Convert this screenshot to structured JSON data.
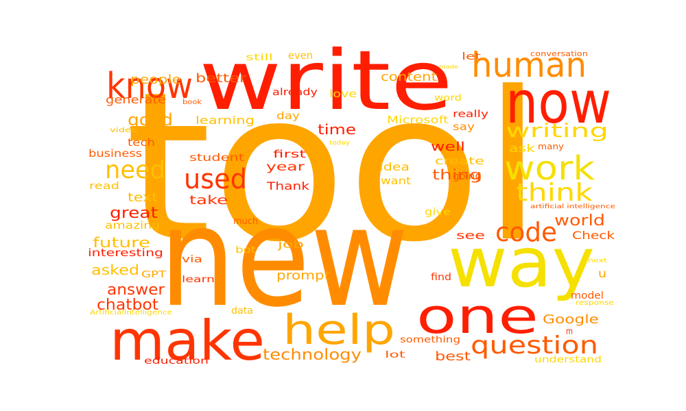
{
  "palette": {
    "gold": "#ffd700",
    "yellow": "#f5e000",
    "amber": "#ffbf00",
    "orange": "#ffa500",
    "dark-orange": "#ff8c00",
    "orange-red": "#ff5a00",
    "red-orange": "#ff3500",
    "red": "#ff1e00",
    "crimson": "#f00000"
  },
  "words": [
    {
      "text": "tool",
      "color": "orange"
    },
    {
      "text": "new",
      "color": "dark-orange"
    },
    {
      "text": "write",
      "color": "red"
    },
    {
      "text": "now",
      "color": "red"
    },
    {
      "text": "way",
      "color": "yellow"
    },
    {
      "text": "one",
      "color": "red"
    },
    {
      "text": "make",
      "color": "red-orange"
    },
    {
      "text": "help",
      "color": "orange"
    },
    {
      "text": "work",
      "color": "yellow"
    },
    {
      "text": "human",
      "color": "dark-orange"
    },
    {
      "text": "know",
      "color": "red-orange"
    },
    {
      "text": "used",
      "color": "red-orange"
    },
    {
      "text": "need",
      "color": "amber"
    },
    {
      "text": "think",
      "color": "gold"
    },
    {
      "text": "code",
      "color": "orange-red"
    },
    {
      "text": "writing",
      "color": "gold"
    },
    {
      "text": "question",
      "color": "orange-red"
    },
    {
      "text": "technology",
      "color": "dark-orange"
    },
    {
      "text": "good",
      "color": "orange"
    },
    {
      "text": "great",
      "color": "red"
    },
    {
      "text": "answer",
      "color": "red-orange"
    },
    {
      "text": "chatbot",
      "color": "red-orange"
    },
    {
      "text": "future",
      "color": "amber"
    },
    {
      "text": "asked",
      "color": "amber"
    },
    {
      "text": "world",
      "color": "orange-red"
    },
    {
      "text": "Google",
      "color": "dark-orange"
    },
    {
      "text": "time",
      "color": "red"
    },
    {
      "text": "thing",
      "color": "orange-red"
    },
    {
      "text": "people",
      "color": "orange"
    },
    {
      "text": "better",
      "color": "orange-red"
    },
    {
      "text": "content",
      "color": "orange"
    },
    {
      "text": "take",
      "color": "red-orange"
    },
    {
      "text": "text",
      "color": "amber"
    },
    {
      "text": "best",
      "color": "orange-red"
    },
    {
      "text": "prompt",
      "color": "orange"
    },
    {
      "text": "see",
      "color": "red-orange"
    },
    {
      "text": "well",
      "color": "red"
    },
    {
      "text": "year",
      "color": "red-orange"
    },
    {
      "text": "Thank",
      "color": "red"
    },
    {
      "text": "idea",
      "color": "amber"
    },
    {
      "text": "job",
      "color": "orange"
    },
    {
      "text": "student",
      "color": "orange-red"
    },
    {
      "text": "learning",
      "color": "amber"
    },
    {
      "text": "generate",
      "color": "orange-red"
    },
    {
      "text": "amazing",
      "color": "amber"
    },
    {
      "text": "interesting",
      "color": "red"
    },
    {
      "text": "Check",
      "color": "orange-red"
    },
    {
      "text": "create",
      "color": "amber"
    },
    {
      "text": "going",
      "color": "orange-red"
    },
    {
      "text": "ask",
      "color": "gold"
    },
    {
      "text": "day",
      "color": "orange"
    },
    {
      "text": "first",
      "color": "red"
    },
    {
      "text": "want",
      "color": "amber"
    },
    {
      "text": "say",
      "color": "dark-orange"
    },
    {
      "text": "really",
      "color": "red"
    },
    {
      "text": "Microsoft",
      "color": "gold"
    },
    {
      "text": "already",
      "color": "red"
    },
    {
      "text": "love",
      "color": "gold"
    },
    {
      "text": "even",
      "color": "amber"
    },
    {
      "text": "let",
      "color": "orange-red"
    },
    {
      "text": "still",
      "color": "gold"
    },
    {
      "text": "word",
      "color": "gold"
    },
    {
      "text": "tech",
      "color": "orange-red"
    },
    {
      "text": "business",
      "color": "orange-red"
    },
    {
      "text": "read",
      "color": "amber"
    },
    {
      "text": "much",
      "color": "orange-red"
    },
    {
      "text": "via",
      "color": "orange-red"
    },
    {
      "text": "learn",
      "color": "red-orange"
    },
    {
      "text": "bot",
      "color": "amber"
    },
    {
      "text": "GPT",
      "color": "orange"
    },
    {
      "text": "find",
      "color": "red-orange"
    },
    {
      "text": "give",
      "color": "gold"
    },
    {
      "text": "model",
      "color": "orange-red"
    },
    {
      "text": "u",
      "color": "orange"
    },
    {
      "text": "m",
      "color": "red-orange"
    },
    {
      "text": "data",
      "color": "amber"
    },
    {
      "text": "something",
      "color": "orange-red"
    },
    {
      "text": "lot",
      "color": "orange-red"
    },
    {
      "text": "education",
      "color": "red"
    },
    {
      "text": "understand",
      "color": "gold"
    },
    {
      "text": "many",
      "color": "orange-red"
    },
    {
      "text": "conversation",
      "color": "orange-red"
    },
    {
      "text": "made",
      "color": "gold"
    },
    {
      "text": "book",
      "color": "orange-red"
    },
    {
      "text": "video",
      "color": "amber"
    },
    {
      "text": "today",
      "color": "gold"
    },
    {
      "text": "artificial intelligence",
      "color": "orange-red"
    },
    {
      "text": "next",
      "color": "gold"
    },
    {
      "text": "response",
      "color": "gold"
    },
    {
      "text": "ArtificialIntelligence",
      "color": "gold"
    }
  ]
}
